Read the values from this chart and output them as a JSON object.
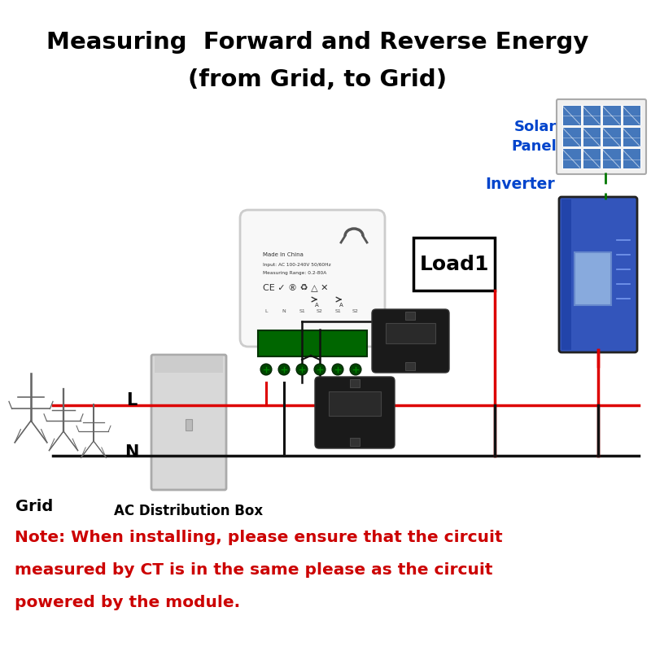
{
  "title_line1": "Measuring  Forward and Reverse Energy",
  "title_line2": "(from Grid, to Grid)",
  "note_line1": "Note: When installing, please ensure that the circuit",
  "note_line2": "measured by CT is in the same please as the circuit",
  "note_line3": "powered by the module.",
  "label_grid": "Grid",
  "label_ac_box": "AC Distribution Box",
  "label_L": "L",
  "label_N": "N",
  "label_solar": "Solar\nPanel",
  "label_inverter": "Inverter",
  "label_load1": "Load1",
  "bg_color": "#ffffff",
  "title_color": "#000000",
  "note_color": "#cc0000",
  "line_red": "#dd0000",
  "line_black": "#111111",
  "line_green": "#007700",
  "inverter_blue": "#3355bb",
  "solar_blue": "#4477bb",
  "tower_gray": "#666666",
  "meter_bg": "#f0f0f0",
  "term_green": "#005500",
  "ct_dark": "#1a1a1a",
  "box_gray": "#c0c0c0"
}
